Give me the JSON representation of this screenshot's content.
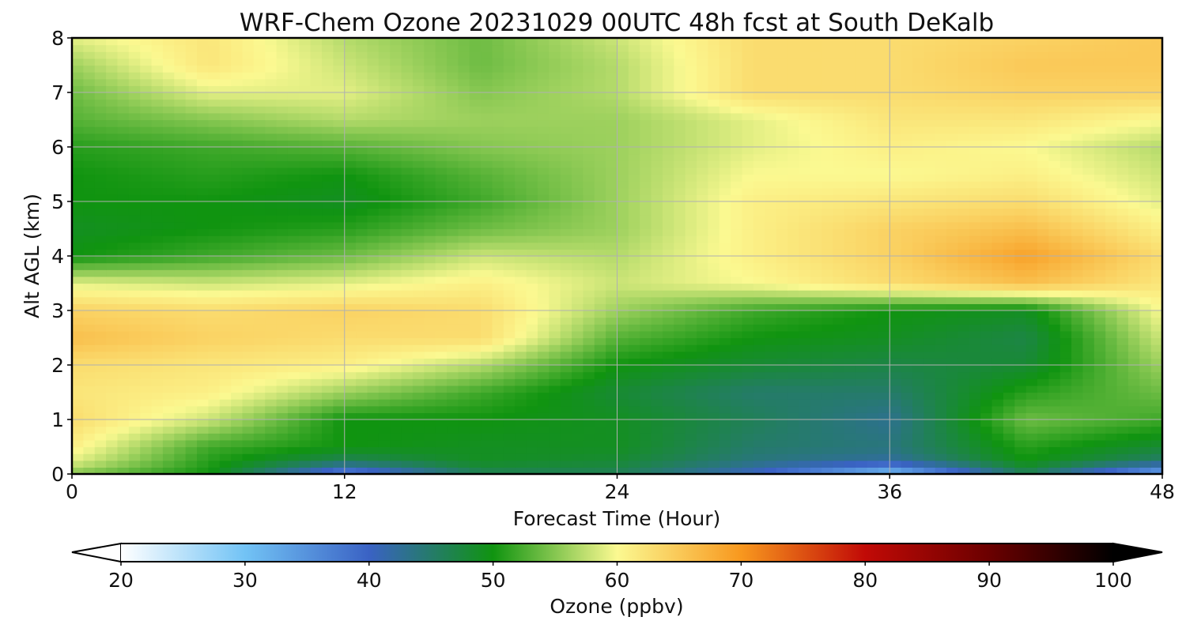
{
  "chart_data": {
    "type": "heatmap",
    "title": "WRF-Chem Ozone  20231029 00UTC 48h fcst at South DeKalb",
    "xlabel": "Forecast Time (Hour)",
    "ylabel": "Alt AGL (km)",
    "xlim": [
      0,
      48
    ],
    "ylim": [
      0,
      8
    ],
    "xticks": [
      "0",
      "12",
      "24",
      "36",
      "48"
    ],
    "yticks": [
      "0",
      "1",
      "2",
      "3",
      "4",
      "5",
      "6",
      "7",
      "8"
    ],
    "grid": true,
    "colorbar": {
      "label": "Ozone  (ppbv)",
      "min": 20,
      "max": 100,
      "extend": "both",
      "ticks": [
        "20",
        "30",
        "40",
        "50",
        "60",
        "70",
        "80",
        "90",
        "100"
      ],
      "colors": [
        "#ffffff",
        "#72c3f5",
        "#3a62c4",
        "#109410",
        "#fbf991",
        "#f8981e",
        "#c10a06",
        "#6b0000",
        "#000000"
      ]
    },
    "x": [
      0,
      6,
      12,
      18,
      24,
      30,
      36,
      42,
      48
    ],
    "y": [
      0,
      0.25,
      0.5,
      1,
      1.5,
      2,
      2.5,
      3,
      3.5,
      4,
      4.5,
      5,
      5.5,
      6,
      6.5,
      7,
      7.5,
      8
    ],
    "values": [
      [
        55,
        50,
        36,
        46,
        46,
        40,
        30,
        46,
        32
      ],
      [
        59,
        51,
        46,
        49,
        48,
        44,
        42,
        50,
        45
      ],
      [
        61,
        52,
        50,
        49,
        49,
        45,
        44,
        51,
        48
      ],
      [
        63,
        58,
        50,
        50,
        49,
        46,
        43,
        54,
        52
      ],
      [
        62,
        61,
        56,
        52,
        48,
        45,
        45,
        51,
        54
      ],
      [
        63,
        62,
        61,
        57,
        50,
        48,
        47,
        48,
        56
      ],
      [
        66,
        64,
        63,
        63,
        53,
        50,
        49,
        47,
        58
      ],
      [
        64,
        63,
        64,
        63,
        56,
        52,
        50,
        49,
        60
      ],
      [
        59,
        58,
        59,
        61,
        58,
        60,
        63,
        66,
        62
      ],
      [
        50,
        52,
        54,
        58,
        57,
        61,
        64,
        69,
        63
      ],
      [
        49,
        50,
        51,
        54,
        56,
        61,
        64,
        66,
        61
      ],
      [
        50,
        50,
        49,
        52,
        56,
        61,
        62,
        63,
        59
      ],
      [
        50,
        51,
        50,
        53,
        56,
        60,
        60,
        61,
        58
      ],
      [
        51,
        52,
        53,
        55,
        56,
        59,
        61,
        60,
        57
      ],
      [
        53,
        55,
        57,
        56,
        56,
        59,
        62,
        62,
        60
      ],
      [
        54,
        59,
        59,
        55,
        57,
        63,
        63,
        64,
        64
      ],
      [
        56,
        62,
        58,
        54,
        57,
        63,
        63,
        65,
        65
      ],
      [
        59,
        62,
        57,
        54,
        58,
        63,
        63,
        64,
        65
      ]
    ]
  }
}
